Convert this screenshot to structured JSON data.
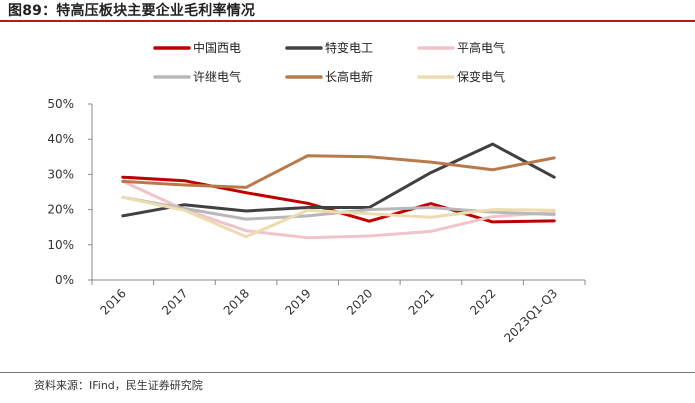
{
  "figure": {
    "title": "图89：特高压板块主要企业毛利率情况",
    "source": "资料来源：IFind，民生证券研究院"
  },
  "chart_data": {
    "type": "line",
    "title": "",
    "xlabel": "",
    "ylabel": "",
    "categories": [
      "2016",
      "2017",
      "2018",
      "2019",
      "2020",
      "2021",
      "2022",
      "2023Q1-Q3"
    ],
    "y_ticks": [
      "0%",
      "10%",
      "20%",
      "30%",
      "40%",
      "50%"
    ],
    "ylim": [
      0,
      50
    ],
    "grid": false,
    "legend_position": "top",
    "series": [
      {
        "name": "中国西电",
        "color": "#c00000",
        "values": [
          29.2,
          28.2,
          24.8,
          21.8,
          16.7,
          21.7,
          16.5,
          16.8
        ]
      },
      {
        "name": "特变电工",
        "color": "#404040",
        "values": [
          18.2,
          21.4,
          19.6,
          20.6,
          20.6,
          30.5,
          38.6,
          29.2
        ]
      },
      {
        "name": "平高电气",
        "color": "#f0c4c8",
        "values": [
          28.0,
          20.0,
          14.0,
          12.0,
          12.5,
          13.8,
          18.0,
          19.2
        ]
      },
      {
        "name": "许继电气",
        "color": "#b8b8b8",
        "values": [
          23.5,
          20.3,
          17.3,
          18.2,
          20.0,
          20.6,
          19.3,
          18.6
        ]
      },
      {
        "name": "长高电新",
        "color": "#b87a4b",
        "values": [
          28.0,
          27.0,
          26.3,
          35.3,
          35.0,
          33.5,
          31.3,
          34.7
        ]
      },
      {
        "name": "保变电气",
        "color": "#ecdcb0",
        "values": [
          23.5,
          19.8,
          12.3,
          19.8,
          18.8,
          17.8,
          20.0,
          19.8
        ]
      }
    ]
  }
}
